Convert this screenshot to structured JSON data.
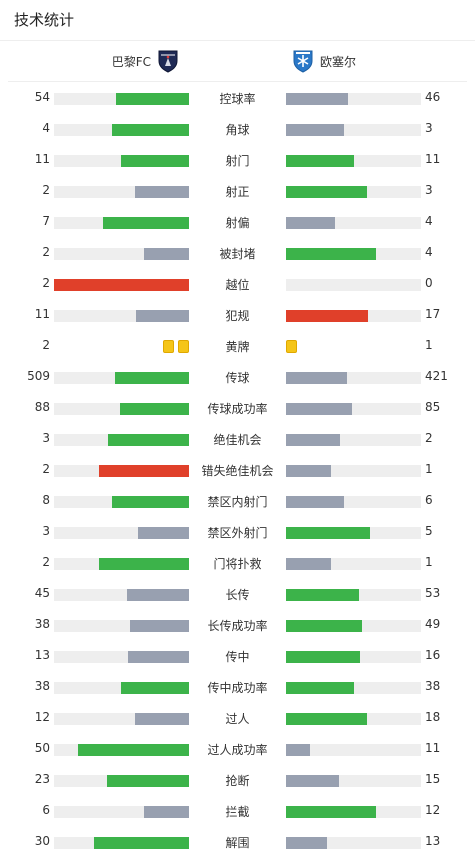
{
  "header": {
    "title": "技术统计"
  },
  "teams": {
    "home": "巴黎FC",
    "away": "欧塞尔"
  },
  "colors": {
    "green": "#3cb34a",
    "gray": "#98a0b0",
    "red": "#e0402a",
    "track": "#eeeeee",
    "yellow": "#f5c518"
  },
  "stats": [
    {
      "name": "控球率",
      "home": "54",
      "away": "46",
      "home_fill": 0.54,
      "away_fill": 0.46,
      "home_color": "green",
      "away_color": "gray"
    },
    {
      "name": "角球",
      "home": "4",
      "away": "3",
      "home_fill": 0.57,
      "away_fill": 0.43,
      "home_color": "green",
      "away_color": "gray"
    },
    {
      "name": "射门",
      "home": "11",
      "away": "11",
      "home_fill": 0.5,
      "away_fill": 0.5,
      "home_color": "green",
      "away_color": "green"
    },
    {
      "name": "射正",
      "home": "2",
      "away": "3",
      "home_fill": 0.4,
      "away_fill": 0.6,
      "home_color": "gray",
      "away_color": "green"
    },
    {
      "name": "射偏",
      "home": "7",
      "away": "4",
      "home_fill": 0.64,
      "away_fill": 0.36,
      "home_color": "green",
      "away_color": "gray"
    },
    {
      "name": "被封堵",
      "home": "2",
      "away": "4",
      "home_fill": 0.33,
      "away_fill": 0.67,
      "home_color": "gray",
      "away_color": "green"
    },
    {
      "name": "越位",
      "home": "2",
      "away": "0",
      "home_fill": 1.0,
      "away_fill": 0.0,
      "home_color": "red",
      "away_color": "gray"
    },
    {
      "name": "犯规",
      "home": "11",
      "away": "17",
      "home_fill": 0.39,
      "away_fill": 0.61,
      "home_color": "gray",
      "away_color": "red"
    },
    {
      "name": "黄牌",
      "home": "2",
      "away": "1",
      "home_cards": 2,
      "away_cards": 1
    },
    {
      "name": "传球",
      "home": "509",
      "away": "421",
      "home_fill": 0.55,
      "away_fill": 0.45,
      "home_color": "green",
      "away_color": "gray"
    },
    {
      "name": "传球成功率",
      "home": "88",
      "away": "85",
      "home_fill": 0.51,
      "away_fill": 0.49,
      "home_color": "green",
      "away_color": "gray"
    },
    {
      "name": "绝佳机会",
      "home": "3",
      "away": "2",
      "home_fill": 0.6,
      "away_fill": 0.4,
      "home_color": "green",
      "away_color": "gray"
    },
    {
      "name": "错失绝佳机会",
      "home": "2",
      "away": "1",
      "home_fill": 0.67,
      "away_fill": 0.33,
      "home_color": "red",
      "away_color": "gray"
    },
    {
      "name": "禁区内射门",
      "home": "8",
      "away": "6",
      "home_fill": 0.57,
      "away_fill": 0.43,
      "home_color": "green",
      "away_color": "gray"
    },
    {
      "name": "禁区外射门",
      "home": "3",
      "away": "5",
      "home_fill": 0.38,
      "away_fill": 0.62,
      "home_color": "gray",
      "away_color": "green"
    },
    {
      "name": "门将扑救",
      "home": "2",
      "away": "1",
      "home_fill": 0.67,
      "away_fill": 0.33,
      "home_color": "green",
      "away_color": "gray"
    },
    {
      "name": "长传",
      "home": "45",
      "away": "53",
      "home_fill": 0.46,
      "away_fill": 0.54,
      "home_color": "gray",
      "away_color": "green"
    },
    {
      "name": "长传成功率",
      "home": "38",
      "away": "49",
      "home_fill": 0.44,
      "away_fill": 0.56,
      "home_color": "gray",
      "away_color": "green"
    },
    {
      "name": "传中",
      "home": "13",
      "away": "16",
      "home_fill": 0.45,
      "away_fill": 0.55,
      "home_color": "gray",
      "away_color": "green"
    },
    {
      "name": "传中成功率",
      "home": "38",
      "away": "38",
      "home_fill": 0.5,
      "away_fill": 0.5,
      "home_color": "green",
      "away_color": "green"
    },
    {
      "name": "过人",
      "home": "12",
      "away": "18",
      "home_fill": 0.4,
      "away_fill": 0.6,
      "home_color": "gray",
      "away_color": "green"
    },
    {
      "name": "过人成功率",
      "home": "50",
      "away": "11",
      "home_fill": 0.82,
      "away_fill": 0.18,
      "home_color": "green",
      "away_color": "gray"
    },
    {
      "name": "抢断",
      "home": "23",
      "away": "15",
      "home_fill": 0.61,
      "away_fill": 0.39,
      "home_color": "green",
      "away_color": "gray"
    },
    {
      "name": "拦截",
      "home": "6",
      "away": "12",
      "home_fill": 0.33,
      "away_fill": 0.67,
      "home_color": "gray",
      "away_color": "green"
    },
    {
      "name": "解围",
      "home": "30",
      "away": "13",
      "home_fill": 0.7,
      "away_fill": 0.3,
      "home_color": "green",
      "away_color": "gray"
    }
  ]
}
